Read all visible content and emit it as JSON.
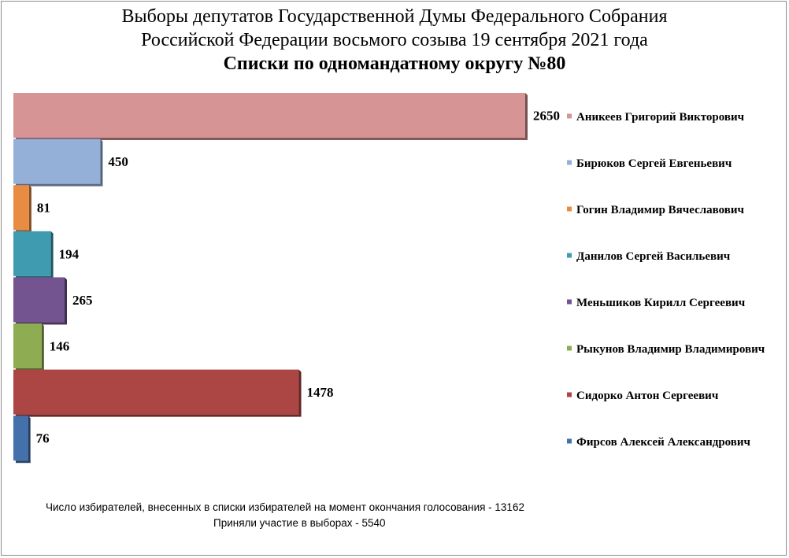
{
  "title_line1": "Выборы депутатов Государственной Думы Федерального Собрания",
  "title_line2": "Российской Федерации восьмого созыва 19 сентября 2021 года",
  "subtitle": "Списки по одномандатному округу №80",
  "footnote_voters": "Число избирателей, внесенных в списки избирателей на момент окончания голосования - 13162",
  "footnote_turnout": "Приняли участие в выборах - 5540",
  "chart_data": {
    "type": "bar",
    "orientation": "horizontal",
    "grid": false,
    "legend_position": "right",
    "series": [
      {
        "name": "Аникеев Григорий Викторович",
        "value": 2650,
        "color": "#d69494"
      },
      {
        "name": "Бирюков Сергей Евгеньевич",
        "value": 450,
        "color": "#95b0d8"
      },
      {
        "name": "Гогин Владимир Вячеславович",
        "value": 81,
        "color": "#e88c44"
      },
      {
        "name": "Данилов Сергей Васильевич",
        "value": 194,
        "color": "#3e9bb0"
      },
      {
        "name": "Меньшиков Кирилл Сергеевич",
        "value": 265,
        "color": "#735490"
      },
      {
        "name": "Рыкунов Владимир Владимирович",
        "value": 146,
        "color": "#8ead52"
      },
      {
        "name": "Сидорко Антон Сергеевич",
        "value": 1478,
        "color": "#ac4645"
      },
      {
        "name": "Фирсов Алексей Александрович",
        "value": 76,
        "color": "#4470ac"
      }
    ]
  }
}
